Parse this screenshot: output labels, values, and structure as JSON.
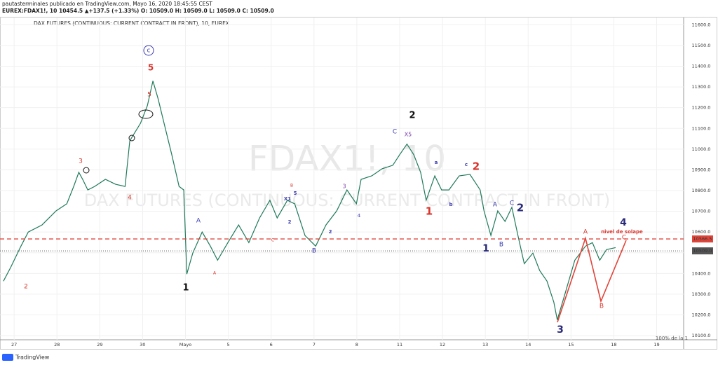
{
  "header": {
    "published": "pautasterminales publicado en TradingView.com, Mayo 16, 2020 18:45:55 CEST",
    "symbol_line": "EUREX:FDAX1!, 10  10454.5  ▲+137.5 (+1.33%)  O: 10509.0  H: 10509.0  L: 10509.0  C: 10509.0"
  },
  "footer": {
    "brand": "TradingView"
  },
  "chart_data": {
    "type": "line",
    "title": "DAX FUTURES (CONTINUOUS: CURRENT CONTRACT IN FRONT), 10, EUREX",
    "watermark": "FDAX1!, 10",
    "watermark_subtitle": "DAX FUTURES (CONTINUOUS: CURRENT CONTRACT IN FRONT)",
    "xlim": [
      -0.33,
      15.63
    ],
    "ylim": [
      10080,
      11635
    ],
    "xticks": [
      {
        "value": 0,
        "label": "27"
      },
      {
        "value": 1,
        "label": "28"
      },
      {
        "value": 2,
        "label": "29"
      },
      {
        "value": 3,
        "label": "30"
      },
      {
        "value": 4,
        "label": "Mayo"
      },
      {
        "value": 5,
        "label": "5"
      },
      {
        "value": 6,
        "label": "6"
      },
      {
        "value": 7,
        "label": "7"
      },
      {
        "value": 8,
        "label": "8"
      },
      {
        "value": 9,
        "label": "11"
      },
      {
        "value": 10,
        "label": "12"
      },
      {
        "value": 11,
        "label": "13"
      },
      {
        "value": 12,
        "label": "14"
      },
      {
        "value": 13,
        "label": "15"
      },
      {
        "value": 14,
        "label": "18"
      },
      {
        "value": 15,
        "label": "19"
      }
    ],
    "yticks": [
      {
        "value": 10100,
        "label": "10100.0"
      },
      {
        "value": 10200,
        "label": "10200.0"
      },
      {
        "value": 10300,
        "label": "10300.0"
      },
      {
        "value": 10400,
        "label": "10400.0"
      },
      {
        "value": 10500,
        "label": "10500.0"
      },
      {
        "value": 10600,
        "label": "10600.0"
      },
      {
        "value": 10700,
        "label": "10700.0"
      },
      {
        "value": 10800,
        "label": "10800.0"
      },
      {
        "value": 10900,
        "label": "10900.0"
      },
      {
        "value": 11000,
        "label": "11000.0"
      },
      {
        "value": 11100,
        "label": "11100.0"
      },
      {
        "value": 11200,
        "label": "11200.0"
      },
      {
        "value": 11300,
        "label": "11300.0"
      },
      {
        "value": 11400,
        "label": "11400.0"
      },
      {
        "value": 11500,
        "label": "11500.0"
      },
      {
        "value": 11600,
        "label": "11600.0"
      }
    ],
    "grid": true,
    "series": [
      {
        "name": "FDAX1!",
        "color": "#1f7a5a",
        "x": [
          -0.25,
          -0.08,
          0.16,
          0.33,
          0.65,
          0.98,
          1.23,
          1.39,
          1.51,
          1.6,
          1.72,
          1.88,
          2.13,
          2.37,
          2.59,
          2.7,
          2.95,
          3.11,
          3.24,
          3.36,
          3.52,
          3.68,
          3.85,
          3.96,
          4.03,
          4.17,
          4.39,
          4.58,
          4.75,
          4.99,
          5.24,
          5.48,
          5.73,
          5.97,
          6.14,
          6.38,
          6.55,
          6.79,
          7.04,
          7.28,
          7.53,
          7.77,
          7.99,
          8.1,
          8.35,
          8.59,
          8.84,
          9.0,
          9.17,
          9.33,
          9.49,
          9.62,
          9.82,
          9.98,
          10.15,
          10.39,
          10.64,
          10.88,
          10.97,
          11.13,
          11.29,
          11.46,
          11.62,
          11.78,
          11.91,
          12.11,
          12.27,
          12.44,
          12.6,
          12.68,
          12.85,
          13.09,
          13.34,
          13.5,
          13.67,
          13.83,
          14.04
        ],
        "values": [
          10363,
          10430,
          10532,
          10600,
          10634,
          10702,
          10736,
          10820,
          10888,
          10854,
          10803,
          10820,
          10854,
          10830,
          10820,
          11040,
          11125,
          11210,
          11329,
          11244,
          11108,
          10973,
          10820,
          10803,
          10397,
          10498,
          10600,
          10532,
          10464,
          10549,
          10634,
          10549,
          10668,
          10753,
          10668,
          10753,
          10736,
          10583,
          10532,
          10634,
          10702,
          10803,
          10736,
          10854,
          10871,
          10905,
          10922,
          10973,
          11024,
          10973,
          10888,
          10753,
          10871,
          10803,
          10803,
          10871,
          10878,
          10803,
          10702,
          10583,
          10702,
          10651,
          10719,
          10566,
          10447,
          10498,
          10414,
          10363,
          10261,
          10176,
          10295,
          10464,
          10532,
          10549,
          10464,
          10515,
          10525
        ]
      }
    ],
    "levels": [
      {
        "value": 10566.5,
        "label": "10566.5",
        "color": "#e0453a"
      },
      {
        "value": 10509,
        "label": "10509.0",
        "color": "#555555"
      }
    ],
    "annotations": [
      "c",
      "5",
      "5",
      "3",
      "4",
      "2",
      "A",
      "A",
      "1",
      "C",
      "B",
      "5",
      "X1",
      "2",
      "B",
      "2",
      "3",
      "4",
      "2",
      "C",
      "X5",
      "1",
      "a",
      "b",
      "c",
      "2",
      "A",
      "C",
      "2",
      "B",
      "1",
      "A",
      "nivel de solape",
      "C",
      "4",
      "B",
      "3",
      "100% de la 1"
    ]
  }
}
